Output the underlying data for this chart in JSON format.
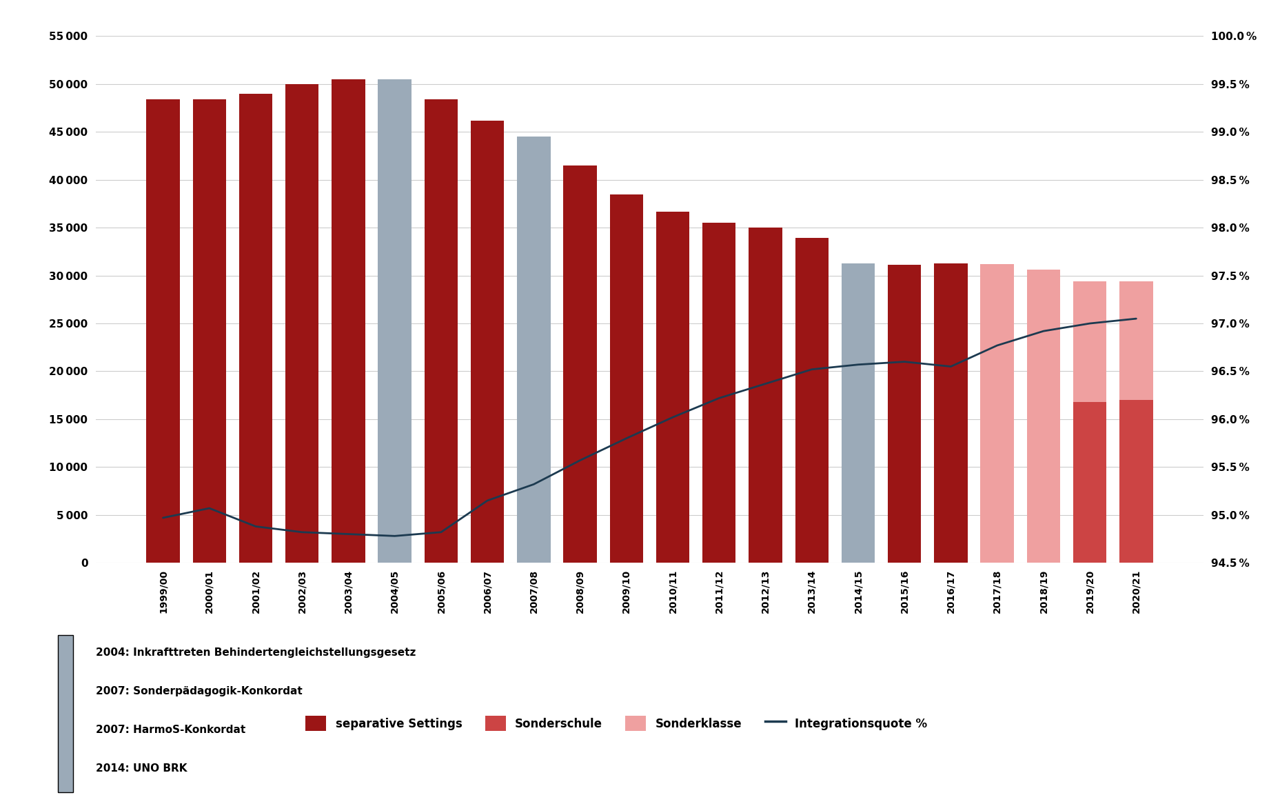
{
  "years": [
    "1999/00",
    "2000/01",
    "2001/02",
    "2002/03",
    "2003/04",
    "2004/05",
    "2005/06",
    "2006/07",
    "2007/08",
    "2008/09",
    "2009/10",
    "2010/11",
    "2011/12",
    "2012/13",
    "2013/14",
    "2014/15",
    "2015/16",
    "2016/17",
    "2017/18",
    "2018/19",
    "2019/20",
    "2020/21"
  ],
  "sep_total": [
    48400,
    48400,
    49000,
    50000,
    50500,
    50500,
    48400,
    46200,
    44500,
    41500,
    38500,
    36700,
    35500,
    35000,
    33900,
    31300,
    31100,
    31300,
    31200,
    30600,
    29400,
    29400
  ],
  "sonderschule": [
    0,
    0,
    0,
    0,
    0,
    0,
    0,
    0,
    0,
    0,
    0,
    0,
    0,
    0,
    0,
    0,
    0,
    0,
    0,
    0,
    16800,
    17000
  ],
  "sonderklasse": [
    0,
    0,
    0,
    0,
    0,
    0,
    0,
    0,
    0,
    0,
    0,
    0,
    0,
    0,
    0,
    0,
    0,
    0,
    0,
    0,
    12600,
    12400
  ],
  "light_pink_years": [
    18,
    19,
    20,
    21
  ],
  "highlighted_years": [
    5,
    8,
    15
  ],
  "integration_pct": [
    94.97,
    95.07,
    94.88,
    94.82,
    94.8,
    94.78,
    94.82,
    95.15,
    95.32,
    95.57,
    95.8,
    96.02,
    96.22,
    96.37,
    96.52,
    96.57,
    96.6,
    96.55,
    96.77,
    96.92,
    97.0,
    97.05
  ],
  "color_dark_red": "#9B1515",
  "color_medium_red": "#CC4444",
  "color_light_pink": "#EFA0A0",
  "color_grey": "#9BAAB8",
  "color_line": "#1C3A50",
  "color_grid": "#CCCCCC",
  "ylim_left": [
    0,
    55000
  ],
  "ylim_right": [
    94.5,
    100.0
  ],
  "yticks_left": [
    0,
    5000,
    10000,
    15000,
    20000,
    25000,
    30000,
    35000,
    40000,
    45000,
    50000,
    55000
  ],
  "yticks_right": [
    94.5,
    95.0,
    95.5,
    96.0,
    96.5,
    97.0,
    97.5,
    98.0,
    98.5,
    99.0,
    99.5,
    100.0
  ],
  "legend_items": [
    "separative Settings",
    "Sonderschule",
    "Sonderklasse",
    "Integrationsquote %"
  ],
  "annotations": [
    "2004: Inkrafttreten Behindertengleichstellungsgesetz",
    "2007: Sonderpädagogik-Konkordat",
    "2007: HarmoS-Konkordat",
    "2014: UNO BRK"
  ]
}
